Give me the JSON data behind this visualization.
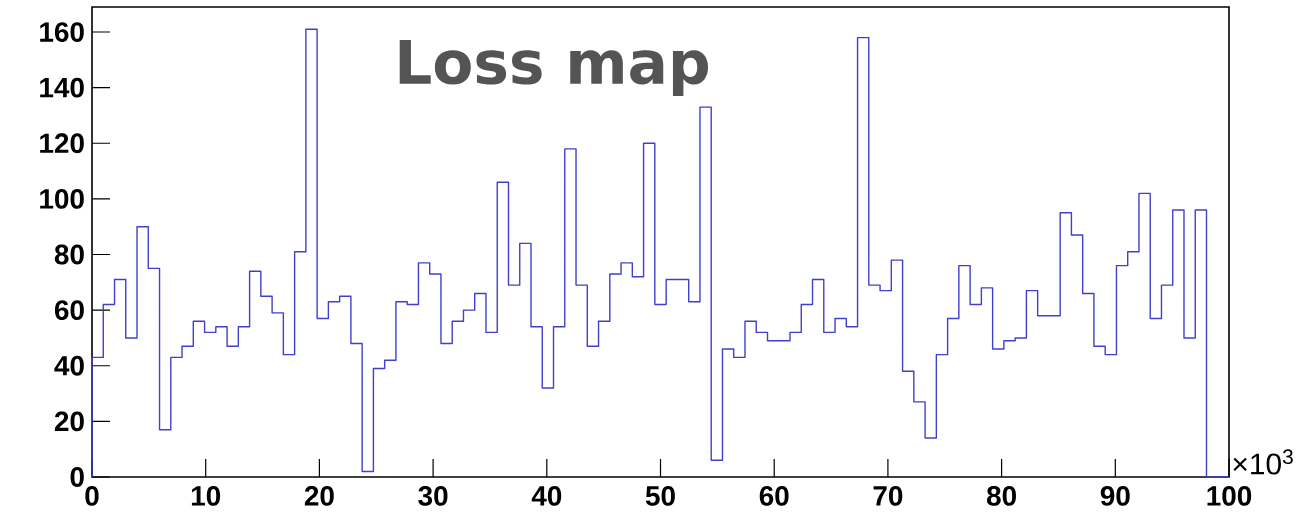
{
  "chart_data": {
    "type": "histogram",
    "title": "Loss map",
    "xlabel": "×10$^{3}$",
    "color": "#4040cc",
    "bins": [
      0,
      0.99,
      1.98,
      2.97,
      3.96,
      4.95,
      5.94,
      6.93,
      7.92,
      8.91,
      9.9,
      10.89,
      11.88,
      12.87,
      13.86,
      14.85,
      15.84,
      16.83,
      17.82,
      18.81,
      19.8,
      20.79,
      21.78,
      22.77,
      23.76,
      24.75,
      25.74,
      26.73,
      27.72,
      28.71,
      29.7,
      30.69,
      31.68,
      32.67,
      33.66,
      34.65,
      35.64,
      36.63,
      37.62,
      38.61,
      39.6,
      40.59,
      41.58,
      42.57,
      43.56,
      44.55,
      45.54,
      46.53,
      47.52,
      48.51,
      49.5,
      50.5,
      51.49,
      52.48,
      53.47,
      54.46,
      55.45,
      56.44,
      57.43,
      58.42,
      59.41,
      60.4,
      61.39,
      62.38,
      63.37,
      64.36,
      65.35,
      66.34,
      67.33,
      68.32,
      69.31,
      70.3,
      71.29,
      72.28,
      73.27,
      74.26,
      75.25,
      76.24,
      77.23,
      78.22,
      79.21,
      80.2,
      81.19,
      82.18,
      83.17,
      84.16,
      85.15,
      86.14,
      87.13,
      88.12,
      89.11,
      90.1,
      91.09,
      92.08,
      93.07,
      94.06,
      95.05,
      96.04,
      97.03,
      98.02,
      99.01,
      100
    ],
    "values": [
      43,
      62,
      71,
      50,
      90,
      75,
      17,
      43,
      47,
      56,
      52,
      54,
      47,
      54,
      74,
      65,
      59,
      44,
      81,
      161,
      57,
      63,
      65,
      48,
      2,
      39,
      42,
      63,
      62,
      77,
      73,
      48,
      56,
      60,
      66,
      52,
      106,
      69,
      84,
      54,
      32,
      54,
      118,
      69,
      47,
      56,
      73,
      77,
      72,
      120,
      62,
      71,
      71,
      63,
      133,
      6,
      46,
      43,
      56,
      52,
      49,
      49,
      52,
      62,
      71,
      52,
      57,
      54,
      158,
      69,
      67,
      78,
      38,
      27,
      14,
      44,
      57,
      76,
      62,
      68,
      46,
      49,
      50,
      67,
      58,
      58,
      95,
      87,
      66,
      47,
      44,
      76,
      81,
      102,
      57,
      69,
      96,
      50,
      96,
      0,
      0
    ],
    "xlim": [
      0,
      100
    ],
    "xticks": [
      0,
      10,
      20,
      30,
      40,
      50,
      60,
      70,
      80,
      90,
      100
    ],
    "ylim": [
      0,
      169
    ],
    "yticks": [
      0,
      20,
      40,
      60,
      80,
      100,
      120,
      140,
      160
    ],
    "grid": false
  }
}
